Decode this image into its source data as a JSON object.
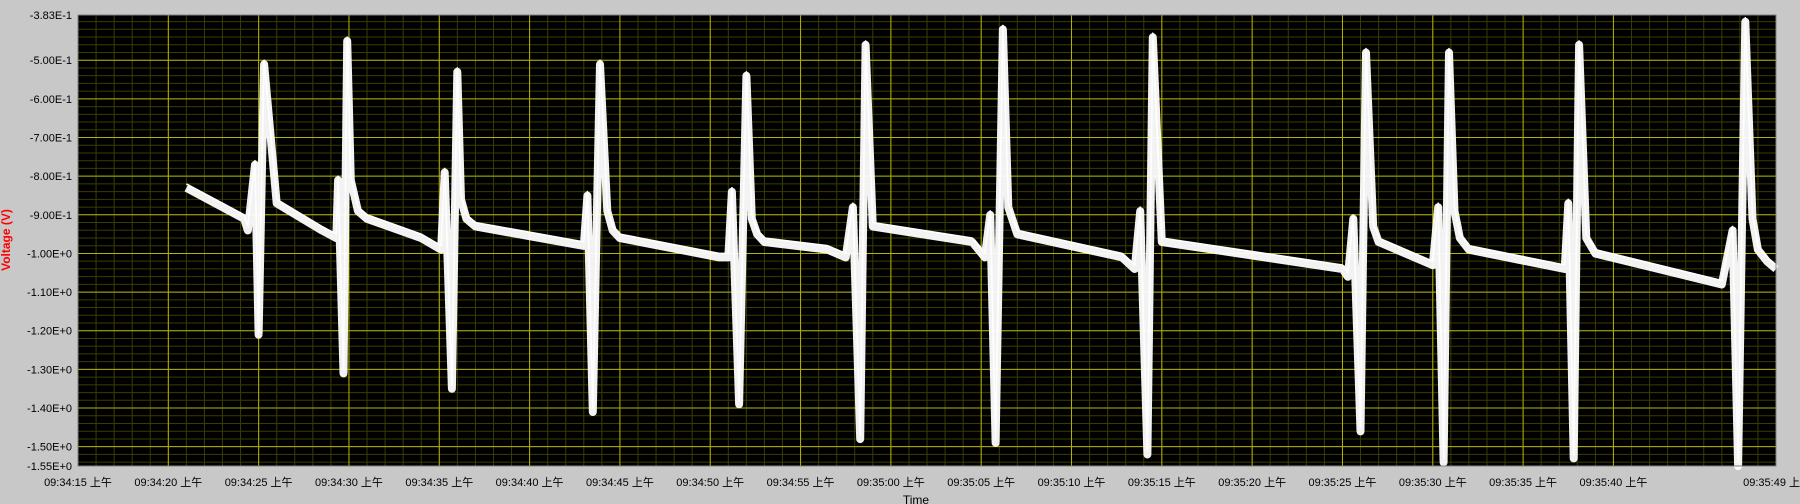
{
  "chart_data": {
    "type": "line",
    "title": "",
    "xlabel": "Time",
    "ylabel": "Voltage (V)",
    "grid": true,
    "legend": "none",
    "colors": {
      "background": "#000000",
      "grid_major": "#b3b300",
      "grid_minor": "#3c3c00",
      "trace": "#ffffff",
      "frame": "#c8c8c8",
      "ylabel": "#ff0000"
    },
    "ylim": [
      -1.55,
      -0.383
    ],
    "xlim": [
      "09:34:15",
      "09:35:49"
    ],
    "y_ticks": [
      -0.383,
      -0.5,
      -0.6,
      -0.7,
      -0.8,
      -0.9,
      -1.0,
      -1.1,
      -1.2,
      -1.3,
      -1.4,
      -1.5,
      -1.55
    ],
    "y_tick_labels": [
      "-3.83E-1",
      "-5.00E-1",
      "-6.00E-1",
      "-7.00E-1",
      "-8.00E-1",
      "-9.00E-1",
      "-1.00E+0",
      "-1.10E+0",
      "-1.20E+0",
      "-1.30E+0",
      "-1.40E+0",
      "-1.50E+0",
      "-1.55E+0"
    ],
    "x_ticks": [
      "09:34:15",
      "09:34:20",
      "09:34:25",
      "09:34:30",
      "09:34:35",
      "09:34:40",
      "09:34:45",
      "09:34:50",
      "09:34:55",
      "09:35:00",
      "09:35:05",
      "09:35:10",
      "09:35:15",
      "09:35:20",
      "09:35:25",
      "09:35:30",
      "09:35:35",
      "09:35:40",
      "09:35:49"
    ],
    "x_tick_labels": [
      "09:34:15 上午",
      "09:34:20 上午",
      "09:34:25 上午",
      "09:34:30 上午",
      "09:34:35 上午",
      "09:34:40 上午",
      "09:34:45 上午",
      "09:34:50 上午",
      "09:34:55 上午",
      "09:35:00 上午",
      "09:35:05 上午",
      "09:35:10 上午",
      "09:35:15 上午",
      "09:35:20 上午",
      "09:35:25 上午",
      "09:35:30 上午",
      "09:35:35 上午",
      "09:35:40 上午",
      "09:35:49 上"
    ],
    "series": [
      {
        "values_note": "approximate waveform vertices (time, voltage)",
        "x": [
          "09:34:21.0",
          "09:34:23.0",
          "09:34:24.2",
          "09:34:24.4",
          "09:34:24.8",
          "09:34:25.0",
          "09:34:25.3",
          "09:34:26.0",
          "09:34:28.5",
          "09:34:29.3",
          "09:34:29.4",
          "09:34:29.7",
          "09:34:29.9",
          "09:34:30.1",
          "09:34:30.5",
          "09:34:31.0",
          "09:34:34.0",
          "09:34:35.1",
          "09:34:35.3",
          "09:34:35.7",
          "09:34:36.0",
          "09:34:36.2",
          "09:34:36.5",
          "09:34:37.0",
          "09:34:43.0",
          "09:34:43.2",
          "09:34:43.5",
          "09:34:43.9",
          "09:34:44.3",
          "09:34:44.6",
          "09:34:45.0",
          "09:34:50.5",
          "09:34:51.0",
          "09:34:51.2",
          "09:34:51.6",
          "09:34:52.0",
          "09:34:52.3",
          "09:34:52.6",
          "09:34:53.0",
          "09:34:56.5",
          "09:34:57.5",
          "09:34:57.9",
          "09:34:58.3",
          "09:34:58.6",
          "09:34:59.0",
          "09:35:04.5",
          "09:35:05.2",
          "09:35:05.5",
          "09:35:05.8",
          "09:35:06.2",
          "09:35:06.5",
          "09:35:07.0",
          "09:35:12.8",
          "09:35:13.5",
          "09:35:13.8",
          "09:35:14.2",
          "09:35:14.5",
          "09:35:15.0",
          "09:35:25.0",
          "09:35:25.3",
          "09:35:25.6",
          "09:35:26.0",
          "09:35:26.3",
          "09:35:26.7",
          "09:35:27.0",
          "09:35:30.0",
          "09:35:30.3",
          "09:35:30.6",
          "09:35:30.9",
          "09:35:31.2",
          "09:35:31.5",
          "09:35:32.0",
          "09:35:37.3",
          "09:35:37.5",
          "09:35:37.8",
          "09:35:38.1",
          "09:35:38.5",
          "09:35:39.0",
          "09:35:46.0",
          "09:35:46.6",
          "09:35:46.9",
          "09:35:47.3",
          "09:35:47.7",
          "09:35:48.0",
          "09:35:48.5",
          "09:35:49.0"
        ],
        "y": [
          -0.82,
          -0.87,
          -0.9,
          -0.93,
          -0.76,
          -1.2,
          -0.5,
          -0.86,
          -0.93,
          -0.95,
          -0.8,
          -1.3,
          -0.44,
          -0.8,
          -0.88,
          -0.9,
          -0.95,
          -0.98,
          -0.78,
          -1.34,
          -0.52,
          -0.85,
          -0.9,
          -0.92,
          -0.97,
          -0.84,
          -1.4,
          -0.5,
          -0.88,
          -0.93,
          -0.95,
          -1.0,
          -1.0,
          -0.83,
          -1.38,
          -0.53,
          -0.9,
          -0.94,
          -0.96,
          -0.98,
          -1.0,
          -0.87,
          -1.47,
          -0.45,
          -0.92,
          -0.96,
          -1.0,
          -0.89,
          -1.48,
          -0.41,
          -0.87,
          -0.94,
          -1.0,
          -1.03,
          -0.88,
          -1.51,
          -0.43,
          -0.96,
          -1.03,
          -1.05,
          -0.9,
          -1.45,
          -0.47,
          -0.92,
          -0.96,
          -1.02,
          -0.87,
          -1.53,
          -0.47,
          -0.88,
          -0.95,
          -0.98,
          -1.03,
          -0.86,
          -1.52,
          -0.45,
          -0.95,
          -0.99,
          -1.07,
          -0.93,
          -1.54,
          -0.39,
          -0.9,
          -0.98,
          -1.01,
          -1.03
        ]
      }
    ]
  }
}
